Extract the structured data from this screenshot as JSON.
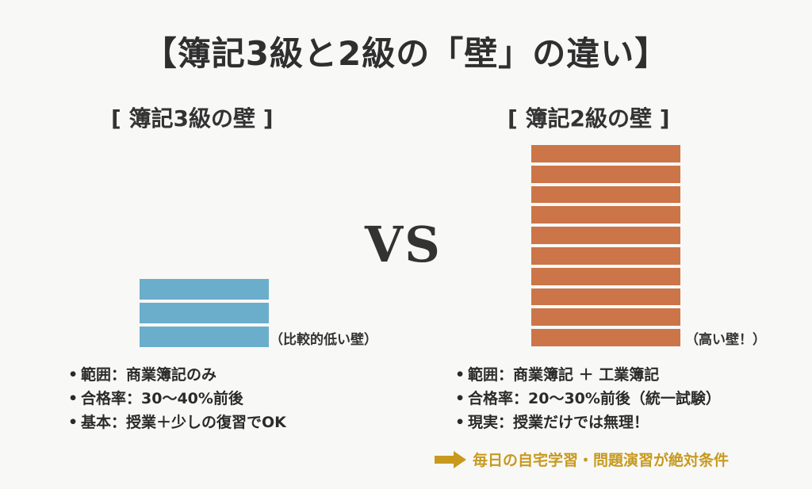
{
  "title": "【簿記3級と2級の「壁」の違い】",
  "vs_label": "VS",
  "left": {
    "heading": "[ 簿記3級の壁 ]",
    "wall_color": "#6aaecb",
    "wall_bars": 3,
    "wall_note": "（比較的低い壁）",
    "items": [
      "範囲：商業簿記のみ",
      "合格率：30〜40%前後",
      "基本：授業＋少しの復習でOK"
    ]
  },
  "right": {
    "heading": "[ 簿記2級の壁 ]",
    "wall_color": "#cc7548",
    "wall_bars": 10,
    "wall_note": "（高い壁！）",
    "items": [
      "範囲：商業簿記 ＋ 工業簿記",
      "合格率：20〜30%前後（統一試験）",
      "現実：授業だけでは無理！"
    ],
    "conclusion": "毎日の自宅学習・問題演習が絶対条件",
    "conclusion_color": "#c79a1e"
  },
  "bullet": "•"
}
